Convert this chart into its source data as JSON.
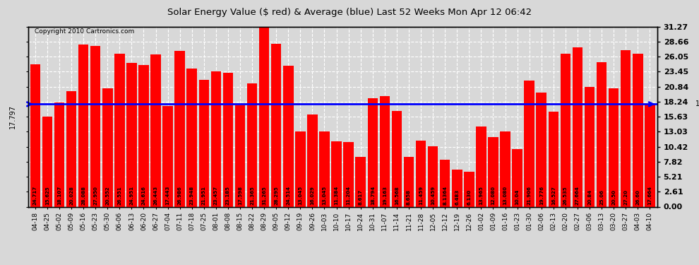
{
  "title": "Solar Energy Value ($ red) & Average (blue) Last 52 Weeks Mon Apr 12 06:42",
  "copyright": "Copyright 2010 Cartronics.com",
  "average": 17.797,
  "bar_color": "#FF0000",
  "avg_line_color": "#0000FF",
  "background_color": "#D8D8D8",
  "grid_color": "#FFFFFF",
  "yticks": [
    0.0,
    2.61,
    5.21,
    7.82,
    10.42,
    13.03,
    15.63,
    18.24,
    20.84,
    23.45,
    26.05,
    28.66,
    31.27
  ],
  "ylim": [
    0.0,
    31.27
  ],
  "categories": [
    "04-18",
    "04-25",
    "05-02",
    "05-09",
    "05-16",
    "05-23",
    "05-30",
    "06-06",
    "06-13",
    "06-20",
    "06-27",
    "07-04",
    "07-11",
    "07-18",
    "07-25",
    "08-01",
    "08-08",
    "08-15",
    "08-22",
    "08-29",
    "09-05",
    "09-12",
    "09-19",
    "09-26",
    "10-03",
    "10-10",
    "10-17",
    "10-24",
    "10-31",
    "11-07",
    "11-14",
    "11-21",
    "11-28",
    "12-05",
    "12-12",
    "12-19",
    "12-26",
    "01-02",
    "01-09",
    "01-16",
    "01-23",
    "01-30",
    "02-06",
    "02-13",
    "02-20",
    "02-27",
    "03-06",
    "03-13",
    "03-20",
    "03-27",
    "04-03",
    "04-10"
  ],
  "values": [
    24.717,
    15.625,
    18.107,
    20.028,
    28.088,
    27.95,
    20.552,
    26.551,
    24.951,
    24.616,
    26.443,
    17.443,
    26.986,
    23.948,
    21.951,
    23.457,
    23.185,
    17.598,
    21.365,
    31.265,
    28.295,
    24.514,
    13.045,
    16.029,
    13.045,
    11.384,
    11.204,
    8.617,
    18.794,
    19.163,
    16.568,
    8.658,
    11.459,
    10.459,
    8.136,
    6.483,
    6.13,
    13.965,
    12.08,
    13.08,
    10.04,
    21.906,
    19.776,
    16.527,
    26.535,
    27.664,
    20.84,
    25.06,
    20.5,
    27.2,
    26.6,
    17.664
  ],
  "val_labels": [
    "24.717",
    "15.625",
    "18.107",
    "20.028",
    "28.088",
    "27.950",
    "20.552",
    "26.551",
    "24.951",
    "24.616",
    "26.443",
    "17.443",
    "26.986",
    "23.948",
    "21.951",
    "23.457",
    "23.185",
    "17.598",
    "21.365",
    "31.265",
    "28.295",
    "24.514",
    "13.045",
    "16.029",
    "13.045",
    "11.384",
    "11.204",
    "8.617",
    "18.794",
    "19.163",
    "16.568",
    "8.658",
    "11.459",
    "10.459",
    "8.1364",
    "6.483",
    "6.130",
    "13.965",
    "12.080",
    "13.080",
    "10.04",
    "21.906",
    "19.776",
    "16.527",
    "26.535",
    "27.664",
    "20.84",
    "25.06",
    "20.50",
    "27.20",
    "26.60",
    "17.664"
  ]
}
